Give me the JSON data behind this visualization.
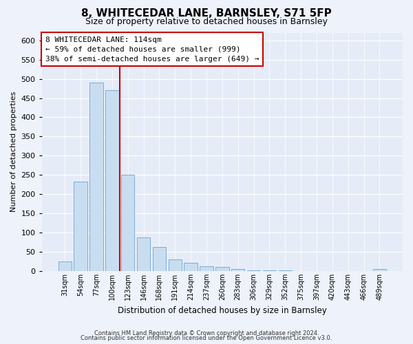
{
  "title": "8, WHITECEDAR LANE, BARNSLEY, S71 5FP",
  "subtitle": "Size of property relative to detached houses in Barnsley",
  "xlabel": "Distribution of detached houses by size in Barnsley",
  "ylabel": "Number of detached properties",
  "bins": [
    "31sqm",
    "54sqm",
    "77sqm",
    "100sqm",
    "123sqm",
    "146sqm",
    "168sqm",
    "191sqm",
    "214sqm",
    "237sqm",
    "260sqm",
    "283sqm",
    "306sqm",
    "329sqm",
    "352sqm",
    "375sqm",
    "397sqm",
    "420sqm",
    "443sqm",
    "466sqm",
    "489sqm"
  ],
  "values": [
    25,
    233,
    490,
    470,
    250,
    88,
    63,
    30,
    22,
    13,
    10,
    5,
    2,
    1,
    1,
    0,
    0,
    0,
    0,
    0,
    5
  ],
  "bar_color": "#c9ddf0",
  "bar_edge_color": "#7aadd4",
  "vline_index": 3,
  "vline_color": "#cc0000",
  "annotation_line1": "8 WHITECEDAR LANE: 114sqm",
  "annotation_line2": "← 59% of detached houses are smaller (999)",
  "annotation_line3": "38% of semi-detached houses are larger (649) →",
  "annotation_box_color": "white",
  "annotation_box_edge": "#cc0000",
  "ylim": [
    0,
    620
  ],
  "yticks": [
    0,
    50,
    100,
    150,
    200,
    250,
    300,
    350,
    400,
    450,
    500,
    550,
    600
  ],
  "footer_line1": "Contains HM Land Registry data © Crown copyright and database right 2024.",
  "footer_line2": "Contains public sector information licensed under the Open Government Licence v3.0.",
  "bg_color": "#eef2fa",
  "plot_bg_color": "#e6ecf7",
  "grid_color": "#ffffff",
  "title_fontsize": 11,
  "subtitle_fontsize": 9
}
